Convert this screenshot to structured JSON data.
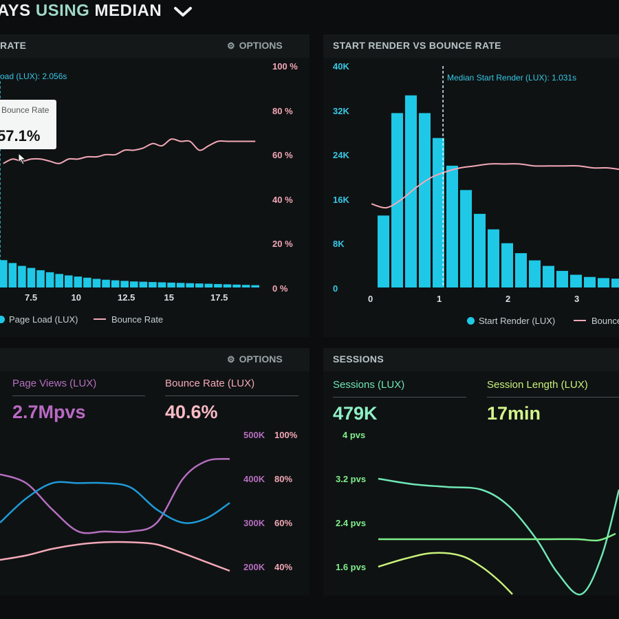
{
  "header": {
    "title_prefix": "AYS",
    "title_accent": "USING",
    "title_suffix": "MEDIAN"
  },
  "panel_tl": {
    "title": "RATE",
    "options_label": "OPTIONS",
    "marker_label": "oad (LUX): 2.056s",
    "tooltip_label": "Bounce Rate",
    "tooltip_value": "57.1%",
    "right_ticks": [
      "100 %",
      "80 %",
      "60 %",
      "40 %",
      "20 %",
      "0 %"
    ],
    "x_ticks": [
      "7.5",
      "10",
      "12.5",
      "15",
      "17.5"
    ],
    "legend_bars": "Page Load (LUX)",
    "legend_line": "Bounce Rate"
  },
  "panel_tr": {
    "title": "START RENDER VS BOUNCE RATE",
    "marker_label": "Median Start Render (LUX): 1.031s",
    "left_ticks": [
      "40K",
      "32K",
      "24K",
      "16K",
      "8K",
      "0"
    ],
    "x_ticks": [
      "0",
      "1",
      "2",
      "3"
    ],
    "legend_bars": "Start Render (LUX)",
    "legend_line": "Bounce"
  },
  "panel_bl": {
    "options_label": "OPTIONS",
    "metric1_label": "Page Views (LUX)",
    "metric1_value": "2.7Mpvs",
    "metric2_label": "Bounce Rate (LUX)",
    "metric2_value": "40.6%",
    "left_ticks": [
      "500K",
      "400K",
      "300K",
      "200K"
    ],
    "right_ticks": [
      "100%",
      "80%",
      "60%",
      "40%"
    ]
  },
  "panel_br": {
    "title": "SESSIONS",
    "metric1_label": "Sessions (LUX)",
    "metric1_value": "479K",
    "metric2_label": "Session Length (LUX)",
    "metric2_value": "17min",
    "left_ticks": [
      "4 pvs",
      "3.2 pvs",
      "2.4 pvs",
      "1.6 pvs"
    ]
  },
  "colors": {
    "cyan": "#1ec8e6",
    "pink": "#f4a9b8",
    "purple": "#b56fc0",
    "blue": "#1e9bd8",
    "green": "#7ff08a",
    "mint": "#6fe7b6",
    "lime": "#c9f27a"
  },
  "chart_data": [
    {
      "type": "bar",
      "name": "page-load-vs-bounce",
      "x_ticks": [
        7.5,
        10,
        12.5,
        15,
        17.5
      ],
      "series": [
        {
          "name": "Page Load (LUX)",
          "kind": "bar",
          "values": [
            9.5,
            8.5,
            7.5,
            6.8,
            6.0,
            5.3,
            4.7,
            4.2,
            3.8,
            3.4,
            3.0,
            2.7,
            2.5,
            2.3,
            2.1,
            2.0,
            1.9,
            1.8,
            1.7,
            1.6,
            1.5,
            1.4,
            1.3,
            1.2,
            1.1,
            1.0,
            0.9,
            0.8
          ]
        },
        {
          "name": "Bounce Rate",
          "kind": "line",
          "x": [
            0,
            1,
            2,
            3,
            4,
            5,
            6,
            7,
            8,
            9,
            10,
            11,
            12,
            13,
            14,
            15,
            16,
            17,
            18,
            19,
            20,
            21,
            22,
            23,
            24,
            25,
            26,
            27
          ],
          "values": [
            56,
            58,
            57,
            58,
            58,
            57,
            56,
            58,
            58,
            59,
            59,
            60,
            60,
            62,
            62,
            63,
            65,
            64,
            67,
            66,
            66,
            62,
            64,
            66,
            66,
            66,
            66,
            66
          ]
        }
      ],
      "y_right": {
        "ticks": [
          "100 %",
          "80 %",
          "60 %",
          "40 %",
          "20 %",
          "0 %"
        ],
        "range": [
          0,
          100
        ]
      },
      "marker": {
        "label": "oad (LUX): 2.056s"
      }
    },
    {
      "type": "bar",
      "name": "start-render-vs-bounce",
      "x_ticks": [
        0,
        1,
        2,
        3
      ],
      "x_range": [
        0,
        3.6
      ],
      "series": [
        {
          "name": "Start Render (LUX)",
          "kind": "bar",
          "values": [
            13000,
            31500,
            34700,
            31500,
            27000,
            22000,
            17600,
            13300,
            10500,
            8000,
            6200,
            4900,
            3900,
            3000,
            2300,
            1900,
            1700,
            1600
          ]
        },
        {
          "name": "Bounce",
          "kind": "line",
          "values": [
            42,
            40,
            44,
            50,
            55,
            58,
            60,
            61,
            62,
            62,
            62,
            61,
            61,
            61,
            61,
            60,
            60,
            59
          ]
        }
      ],
      "y_left": {
        "ticks": [
          "40K",
          "32K",
          "24K",
          "16K",
          "8K",
          "0"
        ],
        "range": [
          0,
          40000
        ]
      },
      "marker": {
        "x": 1.031,
        "label": "Median Start Render (LUX): 1.031s"
      }
    },
    {
      "type": "line",
      "name": "page-views-bounce-rate",
      "series": [
        {
          "name": "Page Views (LUX)",
          "color": "purple",
          "values": [
            410,
            390,
            330,
            280,
            280,
            280,
            300,
            400,
            440,
            445
          ]
        },
        {
          "name": "Bounce Rate (LUX)",
          "color": "pink",
          "values": [
            45,
            47,
            50,
            52,
            53,
            53,
            52,
            48,
            44,
            40
          ]
        },
        {
          "name": "",
          "color": "blue",
          "values": [
            300,
            355,
            390,
            390,
            390,
            380,
            330,
            300,
            310,
            345
          ]
        }
      ],
      "y_left": {
        "ticks": [
          "500K",
          "400K",
          "300K",
          "200K"
        ]
      },
      "y_right": {
        "ticks": [
          "100%",
          "80%",
          "60%",
          "40%"
        ]
      }
    },
    {
      "type": "line",
      "name": "sessions",
      "series": [
        {
          "name": "Sessions (LUX)",
          "color": "mint",
          "values": [
            3.2,
            3.1,
            3.05,
            3.0,
            2.7,
            2.1,
            1.5,
            1.1,
            1.8,
            3.0
          ]
        },
        {
          "name": "Session Length (LUX)",
          "color": "lime",
          "values": [
            1.6,
            1.75,
            1.85,
            1.8,
            1.6,
            1.35,
            1.1
          ]
        },
        {
          "name": "",
          "color": "green",
          "values": [
            2.1,
            2.1,
            2.1,
            2.1,
            2.1,
            2.1,
            2.1,
            2.08,
            2.2
          ]
        }
      ],
      "y_left": {
        "ticks": [
          "4 pvs",
          "3.2 pvs",
          "2.4 pvs",
          "1.6 pvs"
        ]
      }
    }
  ]
}
